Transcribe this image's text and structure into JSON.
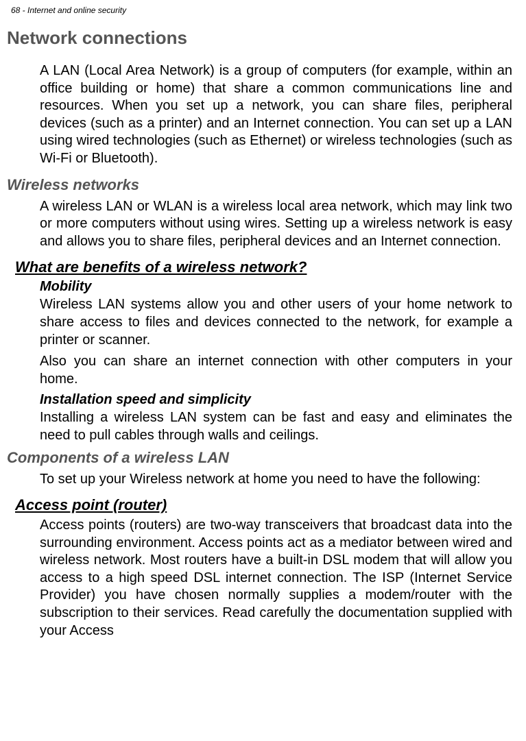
{
  "header": "68 - Internet and online security",
  "title": "Network connections",
  "para1": "A LAN (Local Area Network) is a group of computers (for example, within an office building or home) that share a common communications line and resources. When you set up a network, you can share files, peripheral devices (such as a printer) and an Internet connection. You can set up a LAN using wired technologies (such as Ethernet) or wireless technologies (such as Wi-Fi or Bluetooth).",
  "wireless_heading": "Wireless networks",
  "para2": "A wireless LAN or WLAN is a wireless local area network, which may link two or more computers without using wires. Setting up a wireless network is easy and allows you to share files, peripheral devices and an Internet connection.",
  "benefits_heading": "What are benefits of a wireless network?",
  "mobility_heading": "Mobility",
  "para3": "Wireless LAN systems allow you and other users of your home network to share access to files and devices connected to the network, for example a printer or scanner.",
  "para4": "Also you can share an internet connection with other computers in your home.",
  "install_heading": "Installation speed and simplicity",
  "para5": "Installing a wireless LAN system can be fast and easy and eliminates the need to pull cables through walls and ceilings.",
  "components_heading": "Components of a wireless LAN",
  "para6": "To set up your Wireless network at home you need to have the following:",
  "ap_heading": "Access point (router)",
  "para7": "Access points (routers) are two-way transceivers that broadcast data into the surrounding environment. Access points act as a mediator between wired and wireless network. Most routers have a built-in DSL modem that will allow you access to a high speed DSL internet connection. The ISP (Internet Service Provider) you have chosen normally supplies a modem/router with the subscription to their services. Read carefully the documentation supplied with your Access"
}
